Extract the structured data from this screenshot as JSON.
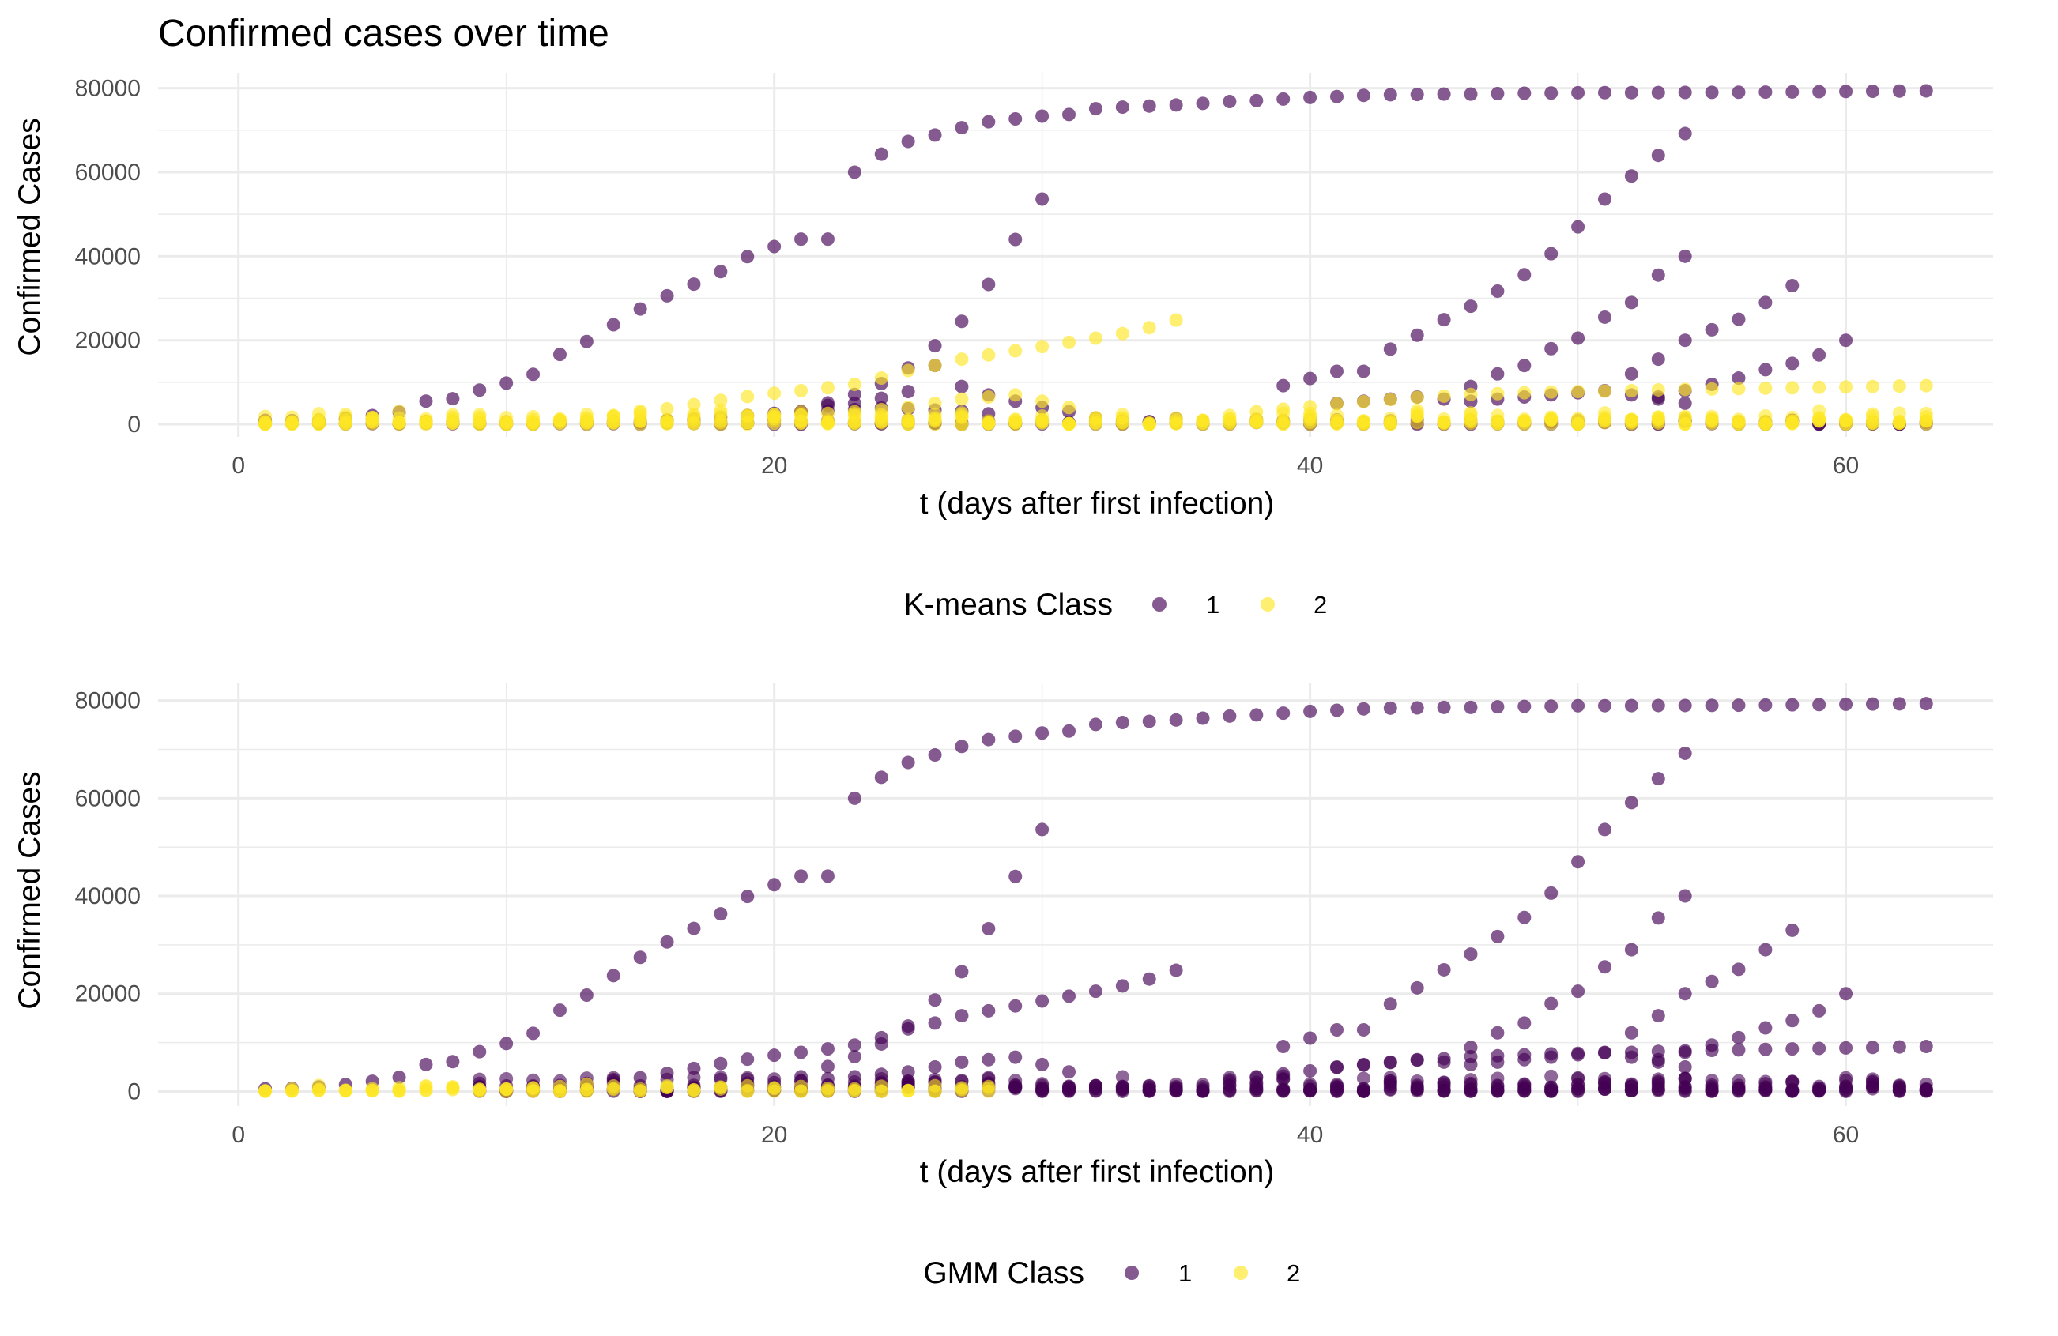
{
  "title": "Confirmed cases over time",
  "colors": {
    "class1": "#440154",
    "class2": "#fde725"
  },
  "chart_data": [
    {
      "type": "scatter",
      "xlabel": "t (days after first infection)",
      "ylabel": "Confirmed Cases",
      "xlim": [
        -3,
        65.5
      ],
      "ylim": [
        -3000,
        83500
      ],
      "xticks": [
        0,
        20,
        40,
        60
      ],
      "yticks": [
        0,
        20000,
        40000,
        60000,
        80000
      ],
      "grid": true,
      "legend": {
        "title": "K-means Class",
        "position": "bottom",
        "entries": [
          "1",
          "2"
        ]
      },
      "series": [
        {
          "name": "1",
          "color": "#440154",
          "curves": [
            {
              "t0": 1,
              "values": [
                548,
                643,
                920,
                1406,
                2075,
                2877,
                5509,
                6087,
                8141,
                9802,
                11891,
                16630,
                19716,
                23707,
                27440,
                30587,
                33366,
                36349,
                39912,
                42310,
                44071,
                44071,
                59989,
                64287,
                67332,
                68858,
                70596,
                72010,
                72684,
                73349,
                73749,
                75104,
                75495,
                75736,
                76010,
                76384,
                76818,
                77044,
                77415,
                77787,
                78008,
                78287,
                78436,
                78494,
                78591,
                78591,
                78701,
                78801,
                78845,
                78926,
                78941,
                78951,
                78967,
                78981,
                79002,
                79027,
                79069,
                79110,
                79164,
                79228,
                79267,
                79310,
                79355
              ]
            },
            {
              "t0": 21,
              "values": [
                3000,
                5100,
                7100,
                9700,
                13400,
                18700,
                24500,
                33300,
                44000,
                53600
              ]
            },
            {
              "t0": 39,
              "values": [
                9200,
                10900,
                12600,
                12600,
                17900,
                21200,
                24900,
                28100,
                31700,
                35600,
                40600,
                47000,
                53600,
                59100,
                64000,
                69200
              ]
            },
            {
              "t0": 46,
              "values": [
                9000,
                12000,
                14000,
                18000,
                20500,
                25500,
                29000,
                35500,
                40000
              ]
            },
            {
              "t0": 52,
              "values": [
                12000,
                15500,
                20000,
                22500,
                25000,
                29000,
                33000
              ]
            },
            {
              "t0": 53,
              "values": [
                6500,
                8000,
                9500,
                11000,
                13000,
                14500,
                16500,
                20000
              ]
            },
            {
              "t0": 41,
              "values": [
                5000,
                5500,
                6000,
                6500,
                6000,
                5500,
                6000,
                6500,
                7000,
                7500,
                8000,
                7000,
                6000,
                5000
              ]
            },
            {
              "t0": 15,
              "values": [
                500,
                1000,
                1300,
                1700,
                2100,
                2600,
                3000,
                3200,
                3500,
                3900,
                3700,
                3400,
                3100,
                2500
              ]
            },
            {
              "t0": 22,
              "values": [
                4500,
                5000,
                6200,
                7800,
                14000,
                9000,
                7000,
                5500,
                4000,
                3000,
                1500,
                800,
                500
              ]
            }
          ],
          "low_band": {
            "from": 1,
            "to": 63,
            "count_per_day": 3,
            "max": 1500
          }
        },
        {
          "name": "2",
          "color": "#fde725",
          "curves": [
            {
              "t0": 1,
              "values": [
                100,
                120,
                150,
                180,
                230,
                300,
                340,
                380,
                440,
                500,
                600,
                1000,
                1500,
                2100,
                2800,
                3700,
                4700,
                5700,
                6600,
                7400,
                8000,
                8700,
                9500,
                11000,
                12800,
                14000,
                15500,
                16500,
                17500,
                18500,
                19500,
                20500,
                21600,
                23000,
                24800
              ]
            },
            {
              "t0": 38,
              "values": [
                3000,
                3600,
                4200,
                4900,
                5400,
                5900,
                6400,
                6700,
                7100,
                7300,
                7500,
                7700,
                7800,
                7900,
                8000,
                8200,
                8300,
                8400,
                8500,
                8600,
                8700,
                8800,
                8900,
                9000,
                9100,
                9200
              ]
            },
            {
              "t0": 20,
              "values": [
                1800,
                2200,
                2600,
                3000,
                3500,
                4000,
                5000,
                6000,
                6500,
                7000,
                5500,
                4000
              ]
            }
          ],
          "low_band": {
            "from": 1,
            "to": 63,
            "count_per_day": 6,
            "max": 3500
          }
        }
      ]
    },
    {
      "type": "scatter",
      "xlabel": "t (days after first infection)",
      "ylabel": "Confirmed Cases",
      "xlim": [
        -3,
        65.5
      ],
      "ylim": [
        -3000,
        83500
      ],
      "xticks": [
        0,
        20,
        40,
        60
      ],
      "yticks": [
        0,
        20000,
        40000,
        60000,
        80000
      ],
      "grid": true,
      "legend": {
        "title": "GMM Class",
        "position": "bottom",
        "entries": [
          "1",
          "2"
        ]
      },
      "series": [
        {
          "name": "1",
          "color": "#440154",
          "curves": [
            {
              "t0": 1,
              "values": [
                548,
                643,
                920,
                1406,
                2075,
                2877,
                5509,
                6087,
                8141,
                9802,
                11891,
                16630,
                19716,
                23707,
                27440,
                30587,
                33366,
                36349,
                39912,
                42310,
                44071,
                44071,
                59989,
                64287,
                67332,
                68858,
                70596,
                72010,
                72684,
                73349,
                73749,
                75104,
                75495,
                75736,
                76010,
                76384,
                76818,
                77044,
                77415,
                77787,
                78008,
                78287,
                78436,
                78494,
                78591,
                78591,
                78701,
                78801,
                78845,
                78926,
                78941,
                78951,
                78967,
                78981,
                79002,
                79027,
                79069,
                79110,
                79164,
                79228,
                79267,
                79310,
                79355
              ]
            },
            {
              "t0": 21,
              "values": [
                3000,
                5100,
                7100,
                9700,
                13400,
                18700,
                24500,
                33300,
                44000,
                53600
              ]
            },
            {
              "t0": 39,
              "values": [
                9200,
                10900,
                12600,
                12600,
                17900,
                21200,
                24900,
                28100,
                31700,
                35600,
                40600,
                47000,
                53600,
                59100,
                64000,
                69200
              ]
            },
            {
              "t0": 46,
              "values": [
                9000,
                12000,
                14000,
                18000,
                20500,
                25500,
                29000,
                35500,
                40000
              ]
            },
            {
              "t0": 52,
              "values": [
                12000,
                15500,
                20000,
                22500,
                25000,
                29000,
                33000
              ]
            },
            {
              "t0": 53,
              "values": [
                6500,
                8000,
                9500,
                11000,
                13000,
                14500,
                16500,
                20000
              ]
            },
            {
              "t0": 14,
              "values": [
                2100,
                2800,
                3700,
                4700,
                5700,
                6600,
                7400,
                8000,
                8700,
                9500,
                11000,
                12800,
                14000,
                15500,
                16500,
                17500,
                18500,
                19500,
                20500,
                21600,
                23000,
                24800
              ]
            },
            {
              "t0": 38,
              "values": [
                3000,
                3600,
                4200,
                4900,
                5400,
                5900,
                6400,
                6700,
                7100,
                7300,
                7500,
                7700,
                7800,
                7900,
                8000,
                8200,
                8300,
                8400,
                8500,
                8600,
                8700,
                8800,
                8900,
                9000,
                9100,
                9200
              ]
            },
            {
              "t0": 41,
              "values": [
                5000,
                5500,
                6000,
                6500,
                6000,
                5500,
                6000,
                6500,
                7000,
                7500,
                8000,
                7000,
                6000,
                5000
              ]
            },
            {
              "t0": 20,
              "values": [
                1800,
                2200,
                2600,
                3000,
                3500,
                4000,
                5000,
                6000,
                6500,
                7000,
                5500,
                4000
              ]
            }
          ],
          "low_band": {
            "from": 9,
            "to": 63,
            "count_per_day": 8,
            "max": 3500
          }
        },
        {
          "name": "2",
          "color": "#fde725",
          "curves": [
            {
              "t0": 1,
              "values": [
                100,
                120,
                150,
                180,
                230,
                300,
                340,
                380,
                440,
                500,
                600,
                1000,
                1500
              ]
            }
          ],
          "low_band": {
            "from": 1,
            "to": 28,
            "count_per_day": 3,
            "max": 1500
          }
        }
      ]
    }
  ]
}
